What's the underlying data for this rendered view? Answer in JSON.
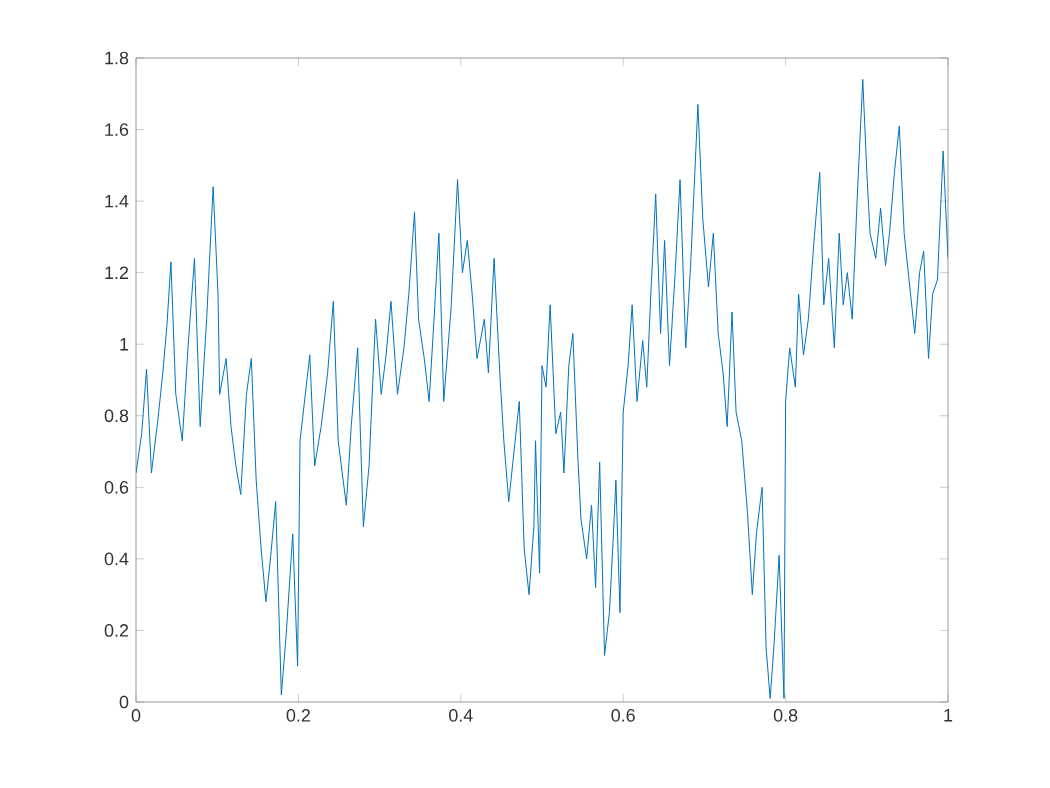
{
  "chart_data": {
    "type": "line",
    "xlim": [
      0,
      1
    ],
    "ylim": [
      0,
      1.8
    ],
    "xticks": [
      0,
      0.2,
      0.4,
      0.6,
      0.8,
      1
    ],
    "yticks": [
      0,
      0.2,
      0.4,
      0.6,
      0.8,
      1,
      1.2,
      1.4,
      1.6,
      1.8
    ],
    "grid": false,
    "marker": "none",
    "line_style": "solid",
    "series": [
      {
        "color": "#0072bd",
        "x": [
          0,
          0.007,
          0.013,
          0.019,
          0.027,
          0.033,
          0.038,
          0.043,
          0.049,
          0.057,
          0.064,
          0.072,
          0.079,
          0.087,
          0.095,
          0.101,
          0.103,
          0.111,
          0.117,
          0.123,
          0.129,
          0.136,
          0.142,
          0.148,
          0.154,
          0.16,
          0.166,
          0.172,
          0.179,
          0.185,
          0.193,
          0.199,
          0.202,
          0.207,
          0.214,
          0.22,
          0.228,
          0.236,
          0.243,
          0.249,
          0.259,
          0.265,
          0.273,
          0.28,
          0.287,
          0.295,
          0.302,
          0.308,
          0.314,
          0.322,
          0.33,
          0.336,
          0.343,
          0.348,
          0.355,
          0.361,
          0.367,
          0.373,
          0.379,
          0.388,
          0.396,
          0.402,
          0.408,
          0.414,
          0.42,
          0.429,
          0.434,
          0.441,
          0.448,
          0.453,
          0.459,
          0.466,
          0.472,
          0.478,
          0.484,
          0.49,
          0.492,
          0.497,
          0.5,
          0.505,
          0.51,
          0.517,
          0.523,
          0.527,
          0.533,
          0.538,
          0.544,
          0.548,
          0.555,
          0.561,
          0.566,
          0.571,
          0.577,
          0.583,
          0.588,
          0.591,
          0.596,
          0.6,
          0.606,
          0.611,
          0.617,
          0.624,
          0.629,
          0.634,
          0.64,
          0.646,
          0.651,
          0.657,
          0.664,
          0.67,
          0.677,
          0.683,
          0.692,
          0.698,
          0.705,
          0.711,
          0.717,
          0.723,
          0.728,
          0.734,
          0.739,
          0.746,
          0.753,
          0.759,
          0.764,
          0.771,
          0.776,
          0.781,
          0.786,
          0.792,
          0.798,
          0.8,
          0.805,
          0.812,
          0.816,
          0.822,
          0.828,
          0.835,
          0.842,
          0.847,
          0.853,
          0.86,
          0.866,
          0.871,
          0.876,
          0.882,
          0.888,
          0.895,
          0.9,
          0.904,
          0.911,
          0.917,
          0.923,
          0.928,
          0.934,
          0.94,
          0.946,
          0.952,
          0.959,
          0.965,
          0.97,
          0.976,
          0.981,
          0.987,
          0.994,
          1
        ],
        "values": [
          0.64,
          0.75,
          0.93,
          0.64,
          0.79,
          0.92,
          1.05,
          1.23,
          0.86,
          0.73,
          0.99,
          1.24,
          0.77,
          1.07,
          1.44,
          1.14,
          0.86,
          0.96,
          0.77,
          0.66,
          0.58,
          0.86,
          0.96,
          0.62,
          0.43,
          0.28,
          0.41,
          0.56,
          0.02,
          0.19,
          0.47,
          0.1,
          0.73,
          0.83,
          0.97,
          0.66,
          0.77,
          0.92,
          1.12,
          0.73,
          0.55,
          0.77,
          0.99,
          0.49,
          0.66,
          1.07,
          0.86,
          0.97,
          1.12,
          0.86,
          0.99,
          1.14,
          1.37,
          1.07,
          0.96,
          0.84,
          1.07,
          1.31,
          0.84,
          1.1,
          1.46,
          1.2,
          1.29,
          1.14,
          0.96,
          1.07,
          0.92,
          1.24,
          0.92,
          0.73,
          0.56,
          0.71,
          0.84,
          0.43,
          0.3,
          0.49,
          0.73,
          0.36,
          0.94,
          0.88,
          1.11,
          0.75,
          0.81,
          0.64,
          0.94,
          1.03,
          0.69,
          0.51,
          0.4,
          0.55,
          0.32,
          0.67,
          0.13,
          0.25,
          0.47,
          0.62,
          0.25,
          0.81,
          0.94,
          1.11,
          0.84,
          1.01,
          0.88,
          1.14,
          1.42,
          1.03,
          1.29,
          0.94,
          1.2,
          1.46,
          0.99,
          1.22,
          1.67,
          1.35,
          1.16,
          1.31,
          1.03,
          0.92,
          0.77,
          1.09,
          0.81,
          0.73,
          0.53,
          0.3,
          0.47,
          0.6,
          0.15,
          0.01,
          0.17,
          0.41,
          0.01,
          0.84,
          0.99,
          0.88,
          1.14,
          0.97,
          1.07,
          1.29,
          1.48,
          1.11,
          1.24,
          0.99,
          1.31,
          1.11,
          1.2,
          1.07,
          1.4,
          1.74,
          1.48,
          1.31,
          1.24,
          1.38,
          1.22,
          1.31,
          1.48,
          1.61,
          1.31,
          1.18,
          1.03,
          1.2,
          1.26,
          0.96,
          1.14,
          1.18,
          1.54,
          1.24
        ]
      }
    ]
  }
}
